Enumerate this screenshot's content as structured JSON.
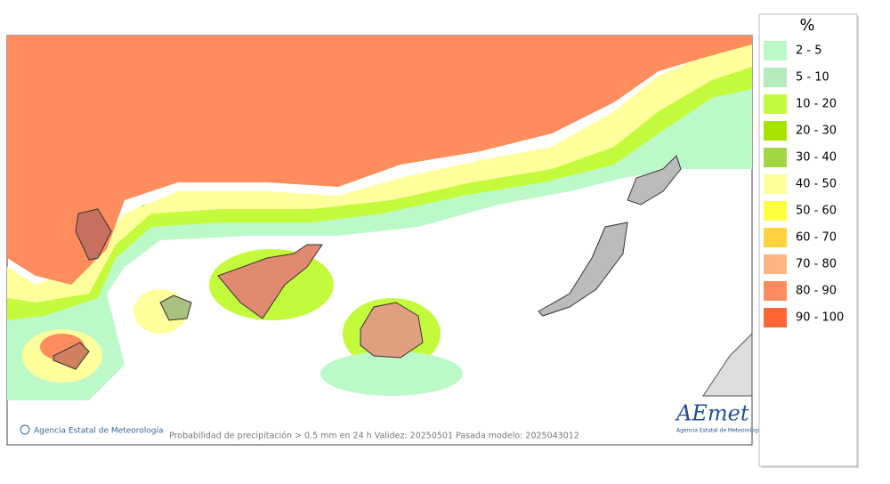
{
  "legend": {
    "title": "%",
    "items": [
      {
        "label": "2 - 5",
        "color": "#bcf9c8"
      },
      {
        "label": "5 - 10",
        "color": "#b4ebbc"
      },
      {
        "label": "10 - 20",
        "color": "#c3fb3c"
      },
      {
        "label": "20 - 30",
        "color": "#a8e300"
      },
      {
        "label": "30 - 40",
        "color": "#a2d642"
      },
      {
        "label": "40 - 50",
        "color": "#ffff9c"
      },
      {
        "label": "50 - 60",
        "color": "#ffff42"
      },
      {
        "label": "60 - 70",
        "color": "#ffd23c"
      },
      {
        "label": "70 - 80",
        "color": "#ffb482"
      },
      {
        "label": "80 - 90",
        "color": "#ff8c5c"
      },
      {
        "label": "90 - 100",
        "color": "#ff6634"
      }
    ]
  },
  "footer": {
    "credit": "Agencia Estatal de Meteorología",
    "caption": "Probabilidad de precipitación > 0.5 mm en 24 h Validez: 20250501 Pasada modelo: 2025043012"
  },
  "logo": {
    "name": "AEmet",
    "subtitle": "Agencia Estatal de Meteorología"
  }
}
